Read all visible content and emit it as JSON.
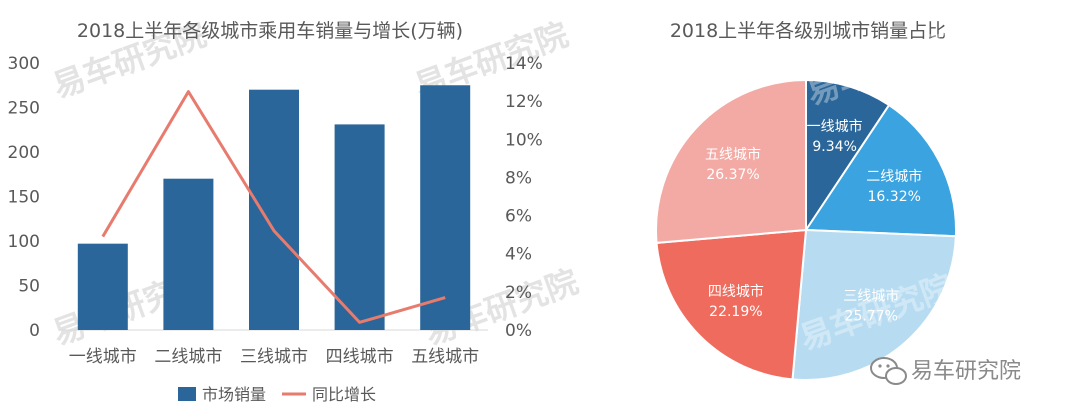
{
  "chart_data": [
    {
      "type": "bar",
      "title": "2018上半年各级城市乘用车销量与增长(万辆)",
      "categories": [
        "一线城市",
        "二线城市",
        "三线城市",
        "四线城市",
        "五线城市"
      ],
      "series": [
        {
          "name": "市场销量",
          "kind": "bar",
          "axis": "left",
          "values": [
            97,
            170,
            270,
            231,
            275
          ]
        },
        {
          "name": "同比增长",
          "kind": "line",
          "axis": "right",
          "values": [
            4.9,
            12.5,
            5.2,
            0.4,
            1.7
          ]
        }
      ],
      "y_left": {
        "ticks": [
          "300",
          "250",
          "200",
          "150",
          "100",
          "50",
          "0"
        ],
        "ylim": [
          0,
          300
        ]
      },
      "y_right": {
        "ticks": [
          "14%",
          "12%",
          "10%",
          "8%",
          "6%",
          "4%",
          "2%",
          "0%"
        ],
        "ylim": [
          0,
          14
        ]
      },
      "colors": {
        "bar": "#2a6699",
        "line": "#e77b6e"
      },
      "legend_position": "bottom",
      "grid": false
    },
    {
      "type": "pie",
      "title": "2018上半年各级别城市销量占比",
      "slices": [
        {
          "label": "一线城市",
          "value": 9.34,
          "display": "9.34%",
          "color": "#2a6699"
        },
        {
          "label": "二线城市",
          "value": 16.32,
          "display": "16.32%",
          "color": "#3aa3e0"
        },
        {
          "label": "三线城市",
          "value": 25.77,
          "display": "25.77%",
          "color": "#b7dcf2"
        },
        {
          "label": "四线城市",
          "value": 22.19,
          "display": "22.19%",
          "color": "#ef6b5e"
        },
        {
          "label": "五线城市",
          "value": 26.37,
          "display": "26.37%",
          "color": "#f3aaa4"
        }
      ]
    }
  ],
  "watermark": {
    "text": "易车研究院",
    "icon": "wechat-icon"
  }
}
